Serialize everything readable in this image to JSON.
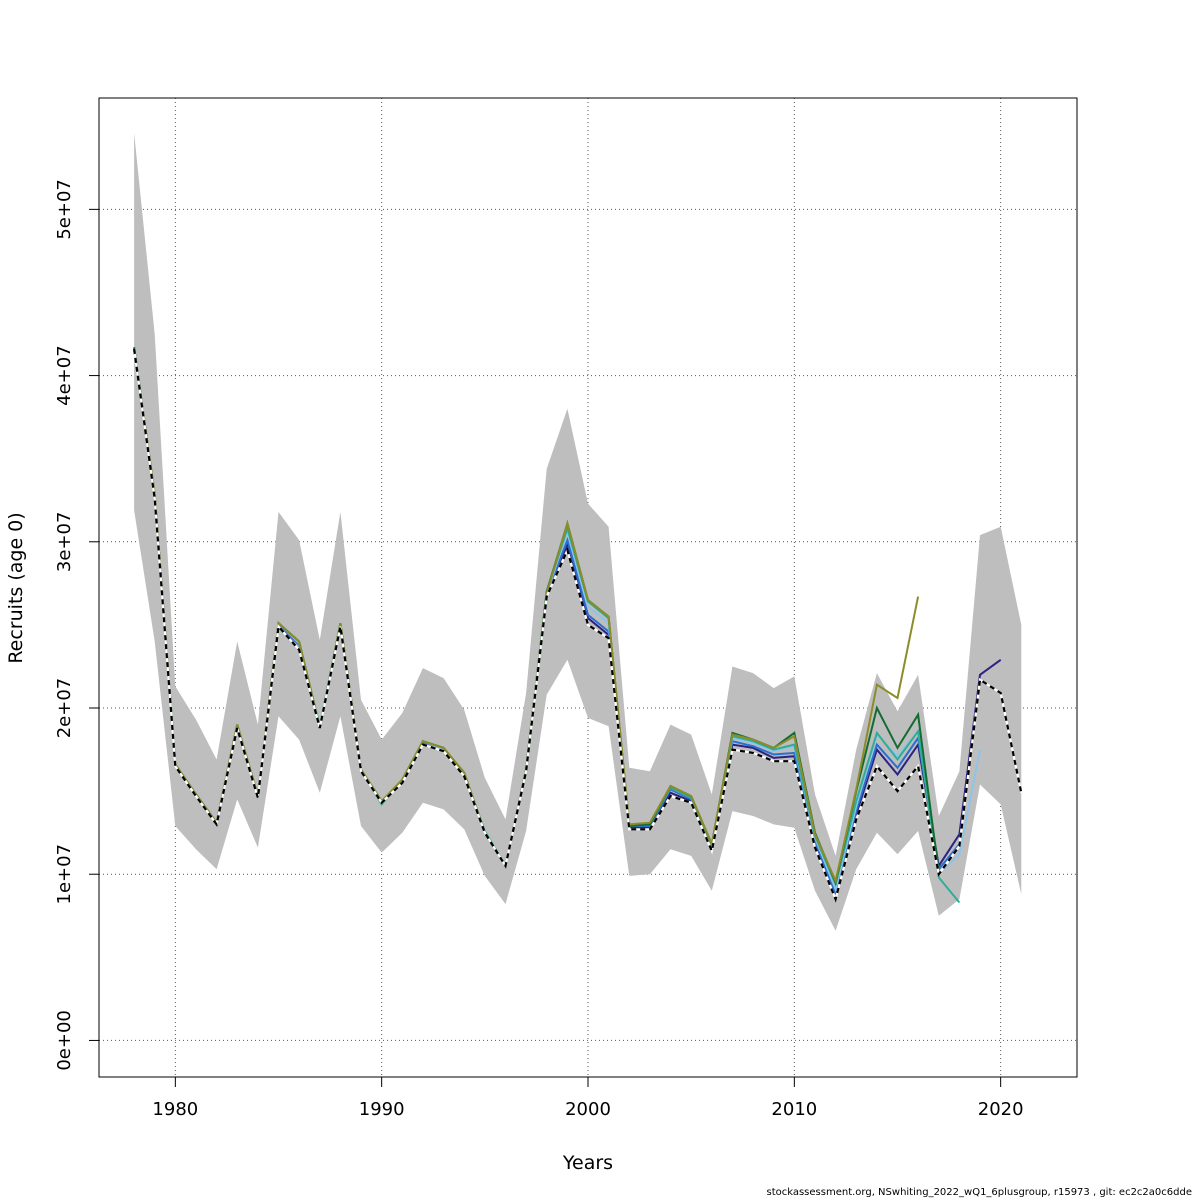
{
  "footer": "stockassessment.org, NSwhiting_2022_wQ1_6plusgroup, r15973 , git: ec2c2a0c6dde",
  "chart_data": {
    "type": "line",
    "title": "",
    "xlabel": "Years",
    "ylabel": "Recruits (age 0)",
    "xlim": [
      1976.3,
      2023.7
    ],
    "ylim": [
      -2200000,
      56700000
    ],
    "x_ticks": [
      1980,
      1990,
      2000,
      2010,
      2020
    ],
    "y_ticks": [
      0,
      10000000,
      20000000,
      30000000,
      40000000,
      50000000
    ],
    "y_tick_labels": [
      "0e+00",
      "1e+07",
      "2e+07",
      "3e+07",
      "4e+07",
      "5e+07"
    ],
    "grid": true,
    "legend": "none",
    "colors": {
      "band": "#bebebe",
      "reference": "#000000",
      "navy": "#2b2282",
      "blue": "#2a6fcf",
      "lightblue": "#8fc4e8",
      "teal": "#2fae96",
      "green": "#146c32",
      "olive": "#8c8c2a"
    },
    "confidence_band": {
      "x": [
        1978,
        1979,
        1980,
        1981,
        1982,
        1983,
        1984,
        1985,
        1986,
        1987,
        1988,
        1989,
        1990,
        1991,
        1992,
        1993,
        1994,
        1995,
        1996,
        1997,
        1998,
        1999,
        2000,
        2001,
        2002,
        2003,
        2004,
        2005,
        2006,
        2007,
        2008,
        2009,
        2010,
        2011,
        2012,
        2013,
        2014,
        2015,
        2016,
        2017,
        2018,
        2019,
        2020,
        2021
      ],
      "lower": [
        31900000,
        24000000,
        12900000,
        11500000,
        10300000,
        14500000,
        11600000,
        19500000,
        18100000,
        14900000,
        19500000,
        12900000,
        11300000,
        12500000,
        14300000,
        13900000,
        12700000,
        9900000,
        8200000,
        12600000,
        20800000,
        22900000,
        19400000,
        18900000,
        9900000,
        10000000,
        11500000,
        11100000,
        9000000,
        13800000,
        13500000,
        13000000,
        12800000,
        9000000,
        6600000,
        10300000,
        12500000,
        11200000,
        12600000,
        7500000,
        8500000,
        15400000,
        14200000,
        8800000
      ],
      "upper": [
        54600000,
        42500000,
        21300000,
        19300000,
        16900000,
        24000000,
        19000000,
        31800000,
        30100000,
        24100000,
        31800000,
        20500000,
        18100000,
        19700000,
        22400000,
        21800000,
        19900000,
        15800000,
        13300000,
        20900000,
        34400000,
        38000000,
        32300000,
        30900000,
        16400000,
        16200000,
        19000000,
        18400000,
        14800000,
        22500000,
        22100000,
        21200000,
        21900000,
        14800000,
        11100000,
        17500000,
        22100000,
        19800000,
        22000000,
        13500000,
        16200000,
        30400000,
        30900000,
        25000000
      ]
    },
    "series": [
      {
        "color": "#2b2282",
        "dashed": false,
        "x": [
          1978,
          1979,
          1980,
          1981,
          1982,
          1983,
          1984,
          1985,
          1986,
          1987,
          1988,
          1989,
          1990,
          1991,
          1992,
          1993,
          1994,
          1995,
          1996,
          1997,
          1998,
          1999,
          2000,
          2001,
          2002,
          2003,
          2004,
          2005,
          2006,
          2007,
          2008,
          2009,
          2010,
          2011,
          2012,
          2013,
          2014,
          2015,
          2016,
          2017,
          2018,
          2019,
          2020
        ],
        "y": [
          41600000,
          32600000,
          16500000,
          14700000,
          13000000,
          18800000,
          14600000,
          25000000,
          23500000,
          18800000,
          25000000,
          16200000,
          14300000,
          15600000,
          17900000,
          17400000,
          15900000,
          12500000,
          10500000,
          16200000,
          26700000,
          29800000,
          25400000,
          24400000,
          12800000,
          12800000,
          14900000,
          14400000,
          11500000,
          17800000,
          17600000,
          17000000,
          17100000,
          11800000,
          8600000,
          13600000,
          17500000,
          16000000,
          17800000,
          10500000,
          12400000,
          22000000,
          22900000
        ]
      },
      {
        "color": "#2a6fcf",
        "dashed": false,
        "x": [
          1978,
          1979,
          1980,
          1981,
          1982,
          1983,
          1984,
          1985,
          1986,
          1987,
          1988,
          1989,
          1990,
          1991,
          1992,
          1993,
          1994,
          1995,
          1996,
          1997,
          1998,
          1999,
          2000,
          2001,
          2002,
          2003,
          2004,
          2005,
          2006,
          2007,
          2008,
          2009,
          2010,
          2011,
          2012,
          2013,
          2014,
          2015,
          2016,
          2017,
          2018
        ],
        "y": [
          41600000,
          32700000,
          16500000,
          14700000,
          13000000,
          18900000,
          14600000,
          25000000,
          23800000,
          18800000,
          25000000,
          16200000,
          14300000,
          15600000,
          17900000,
          17500000,
          15900000,
          12500000,
          10500000,
          16200000,
          26800000,
          30100000,
          25600000,
          24600000,
          12900000,
          12900000,
          15100000,
          14500000,
          11600000,
          18000000,
          17700000,
          17200000,
          17300000,
          12000000,
          8800000,
          13800000,
          17800000,
          16400000,
          18200000,
          10300000,
          11800000
        ]
      },
      {
        "color": "#8fc4e8",
        "dashed": false,
        "x": [
          1978,
          1979,
          1980,
          1981,
          1982,
          1983,
          1984,
          1985,
          1986,
          1987,
          1988,
          1989,
          1990,
          1991,
          1992,
          1993,
          1994,
          1995,
          1996,
          1997,
          1998,
          1999,
          2000,
          2001,
          2002,
          2003,
          2004,
          2005,
          2006,
          2007,
          2008,
          2009,
          2010,
          2011,
          2012,
          2013,
          2014,
          2015,
          2016,
          2017,
          2018,
          2019
        ],
        "y": [
          41600000,
          32800000,
          16600000,
          14800000,
          13100000,
          18900000,
          14700000,
          25100000,
          23900000,
          18900000,
          25100000,
          16300000,
          14300000,
          15700000,
          18000000,
          17500000,
          16000000,
          12500000,
          10500000,
          16300000,
          26900000,
          30600000,
          26100000,
          25100000,
          12900000,
          13000000,
          15200000,
          14600000,
          11700000,
          18200000,
          17900000,
          17400000,
          17700000,
          12200000,
          9100000,
          14100000,
          18400000,
          17100000,
          18600000,
          10000000,
          11200000,
          17500000
        ]
      },
      {
        "color": "#2fae96",
        "dashed": false,
        "x": [
          1978,
          1979,
          1980,
          1981,
          1982,
          1983,
          1984,
          1985,
          1986,
          1987,
          1988,
          1989,
          1990,
          1991,
          1992,
          1993,
          1994,
          1995,
          1996,
          1997,
          1998,
          1999,
          2000,
          2001,
          2002,
          2003,
          2004,
          2005,
          2006,
          2007,
          2008,
          2009,
          2010,
          2011,
          2012,
          2013,
          2014,
          2015,
          2016,
          2017,
          2018
        ],
        "y": [
          41700000,
          32800000,
          16600000,
          14800000,
          13100000,
          19000000,
          14700000,
          25100000,
          24000000,
          18900000,
          25100000,
          16300000,
          14200000,
          15700000,
          18000000,
          17600000,
          16000000,
          12600000,
          10500000,
          16300000,
          27000000,
          30800000,
          26400000,
          25400000,
          12900000,
          13000000,
          15200000,
          14600000,
          11700000,
          18300000,
          18000000,
          17500000,
          17800000,
          12300000,
          9400000,
          14400000,
          18500000,
          16900000,
          18600000,
          9800000,
          8300000
        ]
      },
      {
        "color": "#146c32",
        "dashed": false,
        "x": [
          1978,
          1979,
          1980,
          1981,
          1982,
          1983,
          1984,
          1985,
          1986,
          1987,
          1988,
          1989,
          1990,
          1991,
          1992,
          1993,
          1994,
          1995,
          1996,
          1997,
          1998,
          1999,
          2000,
          2001,
          2002,
          2003,
          2004,
          2005,
          2006,
          2007,
          2008,
          2009,
          2010,
          2011,
          2012,
          2013,
          2014,
          2015,
          2016,
          2017
        ],
        "y": [
          41700000,
          32800000,
          16600000,
          14800000,
          13100000,
          19000000,
          14700000,
          25100000,
          24000000,
          18800000,
          25100000,
          16300000,
          14400000,
          15600000,
          18000000,
          17600000,
          16100000,
          12500000,
          10500000,
          16300000,
          27000000,
          31100000,
          26500000,
          25500000,
          12900000,
          13000000,
          15300000,
          14700000,
          11800000,
          18500000,
          18100000,
          17600000,
          18500000,
          12500000,
          9500000,
          15000000,
          20000000,
          17600000,
          19600000,
          10100000
        ]
      },
      {
        "color": "#8c8c2a",
        "dashed": false,
        "x": [
          1978,
          1979,
          1980,
          1981,
          1982,
          1983,
          1984,
          1985,
          1986,
          1987,
          1988,
          1989,
          1990,
          1991,
          1992,
          1993,
          1994,
          1995,
          1996,
          1997,
          1998,
          1999,
          2000,
          2001,
          2002,
          2003,
          2004,
          2005,
          2006,
          2007,
          2008,
          2009,
          2010,
          2011,
          2012,
          2013,
          2014,
          2015,
          2016
        ],
        "y": [
          41600000,
          32900000,
          16600000,
          14800000,
          13100000,
          19000000,
          14700000,
          25100000,
          24000000,
          18800000,
          25100000,
          16300000,
          14400000,
          15700000,
          18000000,
          17600000,
          16100000,
          12500000,
          10500000,
          16300000,
          26900000,
          31100000,
          26500000,
          25500000,
          13000000,
          13100000,
          15300000,
          14700000,
          11800000,
          18400000,
          18100000,
          17600000,
          18300000,
          12400000,
          9600000,
          15100000,
          21400000,
          20600000,
          26700000
        ]
      },
      {
        "color": "#000000",
        "dashed": true,
        "x": [
          1978,
          1979,
          1980,
          1981,
          1982,
          1983,
          1984,
          1985,
          1986,
          1987,
          1988,
          1989,
          1990,
          1991,
          1992,
          1993,
          1994,
          1995,
          1996,
          1997,
          1998,
          1999,
          2000,
          2001,
          2002,
          2003,
          2004,
          2005,
          2006,
          2007,
          2008,
          2009,
          2010,
          2011,
          2012,
          2013,
          2014,
          2015,
          2016,
          2017,
          2018,
          2019,
          2020,
          2021
        ],
        "y": [
          41600000,
          32600000,
          16500000,
          14700000,
          13000000,
          18800000,
          14600000,
          24900000,
          23500000,
          18800000,
          24900000,
          16200000,
          14300000,
          15500000,
          17800000,
          17400000,
          15900000,
          12500000,
          10500000,
          16200000,
          26700000,
          29500000,
          25000000,
          24200000,
          12700000,
          12700000,
          14700000,
          14300000,
          11400000,
          17500000,
          17300000,
          16800000,
          16800000,
          11600000,
          8500000,
          13300000,
          16500000,
          15000000,
          16500000,
          10000000,
          11700000,
          21700000,
          20900000,
          14900000
        ]
      }
    ]
  }
}
